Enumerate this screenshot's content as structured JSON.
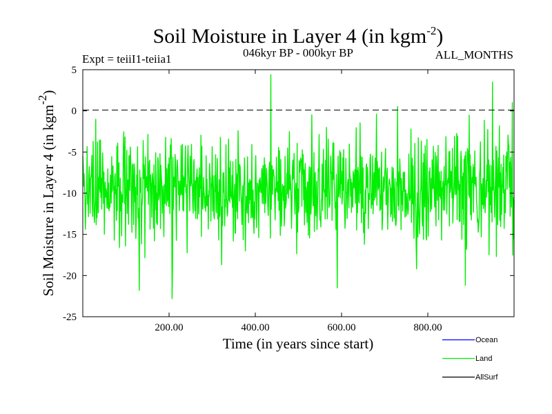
{
  "chart_data": {
    "type": "line",
    "title_main": "Soil Moisture in Layer 4 (in kgm",
    "title_sup": "-2",
    "title_close": ")",
    "expt_label": "Expt = teiiI1-teiia1",
    "period_label": "046kyr BP - 000kyr BP",
    "months_label": "ALL_MONTHS",
    "xlabel": "Time (in years since start)",
    "ylabel_main": "Soil Moisture in Layer 4 (in kgm",
    "ylabel_sup": "-2",
    "ylabel_close": ")",
    "xlim": [
      0,
      1000
    ],
    "ylim": [
      -25,
      5
    ],
    "xticks": [
      200,
      400,
      600,
      800
    ],
    "xtick_labels": [
      "200.00",
      "400.00",
      "600.00",
      "800.00"
    ],
    "yticks": [
      5,
      0,
      -5,
      -10,
      -15,
      -20,
      -25
    ],
    "ytick_labels": [
      "5",
      "0",
      "-5",
      "-10",
      "-15",
      "-20",
      "-25"
    ],
    "zero_line": 0,
    "series": [
      {
        "name": "Land",
        "color": "#00ee00",
        "mean": -9.5,
        "noise_sd": 3.3,
        "peaks": [
          [
            436,
            4.4
          ],
          [
            950,
            3.5
          ],
          [
            996,
            1.0
          ]
        ],
        "troughs": [
          [
            207,
            -22.8
          ],
          [
            131,
            -21.8
          ],
          [
            590,
            -21.5
          ],
          [
            887,
            -21.2
          ]
        ]
      }
    ],
    "legend": [
      {
        "label": "Ocean",
        "color": "#0000ff"
      },
      {
        "label": "Land",
        "color": "#00ee00"
      },
      {
        "label": "AllSurf",
        "color": "#000000"
      }
    ]
  }
}
